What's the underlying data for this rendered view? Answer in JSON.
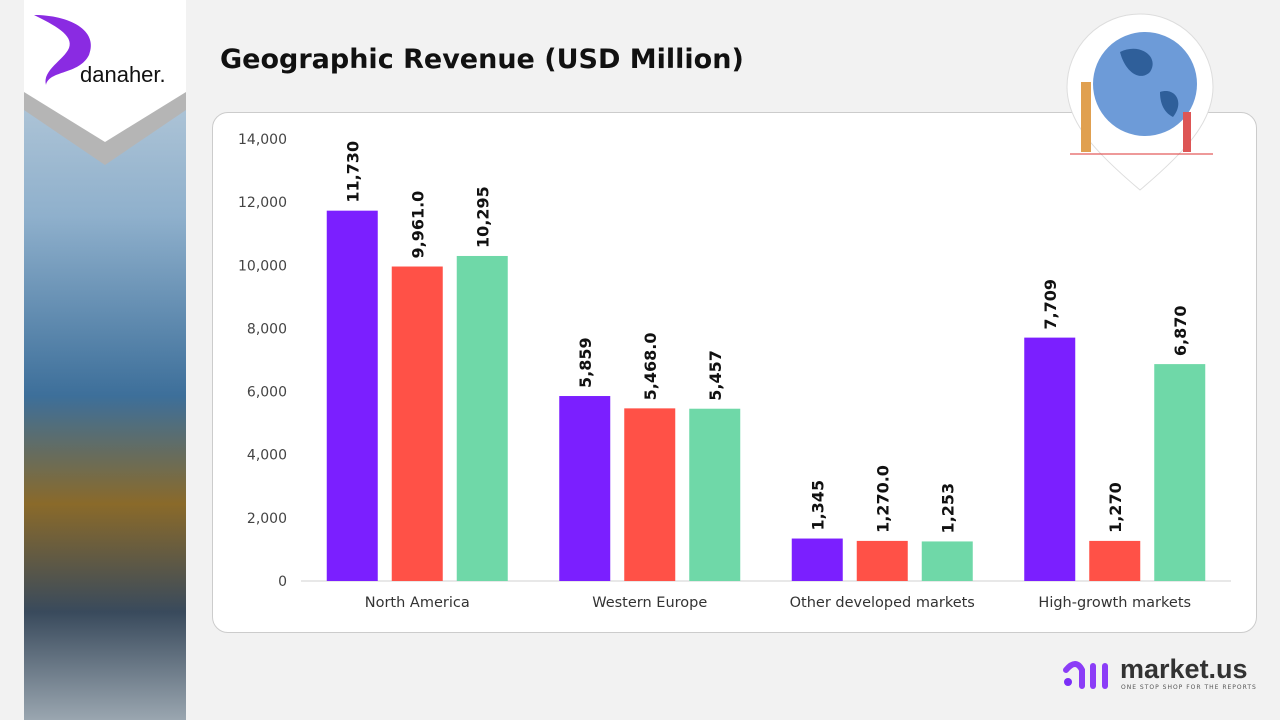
{
  "title": "Geographic Revenue (USD Million)",
  "brand": {
    "logo": "danaher.",
    "footer_logo": "market.us",
    "footer_tagline": "ONE STOP SHOP FOR THE REPORTS"
  },
  "colors": {
    "series": [
      "#7b1fff",
      "#ff5147",
      "#6fd8a8"
    ]
  },
  "chart_data": {
    "type": "bar",
    "categories": [
      "North America",
      "Western Europe",
      "Other developed markets",
      "High-growth markets"
    ],
    "series": [
      {
        "values": [
          11730,
          5859,
          1345,
          7709
        ],
        "labels": [
          "11,730",
          "5,859",
          "1,345",
          "7,709"
        ]
      },
      {
        "values": [
          9961.0,
          5468.0,
          1270.0,
          1270
        ],
        "labels": [
          "9,961.0",
          "5,468.0",
          "1,270.0",
          "1,270"
        ]
      },
      {
        "values": [
          10295,
          5457,
          1253,
          6870
        ],
        "labels": [
          "10,295",
          "5,457",
          "1,253",
          "6,870"
        ]
      }
    ],
    "ylim": [
      0,
      14000
    ],
    "yticks": [
      0,
      2000,
      4000,
      6000,
      8000,
      10000,
      12000,
      14000
    ],
    "ytick_labels": [
      "0",
      "2,000",
      "4,000",
      "6,000",
      "8,000",
      "10,000",
      "12,000",
      "14,000"
    ],
    "grid": false,
    "legend": "none"
  }
}
